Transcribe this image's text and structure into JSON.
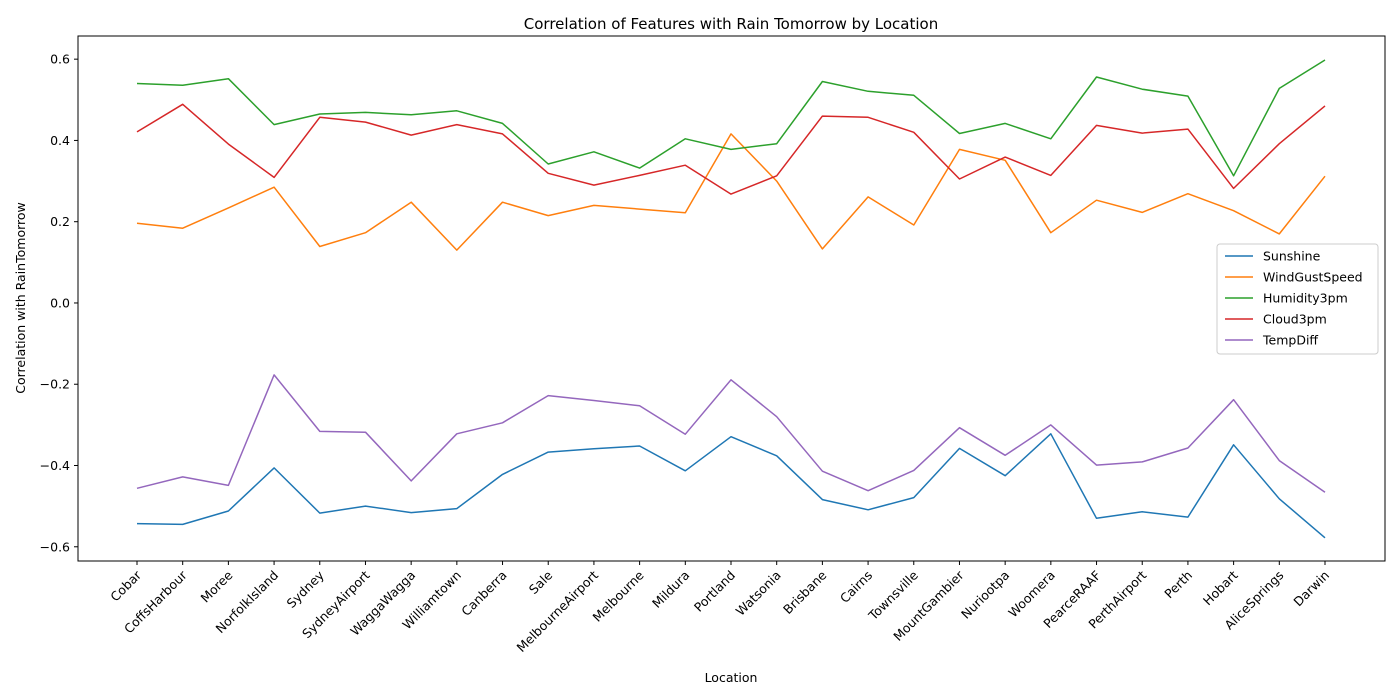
{
  "chart_data": {
    "type": "line",
    "title": "Correlation of Features with Rain Tomorrow by Location",
    "xlabel": "Location",
    "ylabel": "Correlation with RainTomorrow",
    "ylim": [
      -0.635,
      0.657
    ],
    "yticks": [
      -0.6,
      -0.4,
      -0.2,
      0.0,
      0.2,
      0.4,
      0.6
    ],
    "ytick_labels": [
      "−0.6",
      "−0.4",
      "−0.2",
      "0.0",
      "0.2",
      "0.4",
      "0.6"
    ],
    "grid": false,
    "legend_position": "center-right",
    "categories": [
      "Cobar",
      "CoffsHarbour",
      "Moree",
      "NorfolkIsland",
      "Sydney",
      "SydneyAirport",
      "WaggaWagga",
      "Williamtown",
      "Canberra",
      "Sale",
      "MelbourneAirport",
      "Melbourne",
      "Mildura",
      "Portland",
      "Watsonia",
      "Brisbane",
      "Cairns",
      "Townsville",
      "MountGambier",
      "Nuriootpa",
      "Woomera",
      "PearceRAAF",
      "PerthAirport",
      "Perth",
      "Hobart",
      "AliceSprings",
      "Darwin"
    ],
    "series": [
      {
        "name": "Sunshine",
        "color": "#1f77b4",
        "values": [
          -0.543,
          -0.545,
          -0.512,
          -0.406,
          -0.517,
          -0.5,
          -0.516,
          -0.506,
          -0.422,
          -0.367,
          -0.359,
          -0.352,
          -0.413,
          -0.329,
          -0.376,
          -0.484,
          -0.509,
          -0.479,
          -0.358,
          -0.425,
          -0.322,
          -0.53,
          -0.514,
          -0.527,
          -0.349,
          -0.482,
          -0.578
        ]
      },
      {
        "name": "WindGustSpeed",
        "color": "#ff7f0e",
        "values": [
          0.196,
          0.184,
          0.234,
          0.285,
          0.139,
          0.173,
          0.248,
          0.13,
          0.248,
          0.215,
          0.24,
          0.231,
          0.222,
          0.416,
          0.3,
          0.133,
          0.261,
          0.192,
          0.378,
          0.351,
          0.173,
          0.253,
          0.223,
          0.269,
          0.227,
          0.17,
          0.312
        ]
      },
      {
        "name": "Humidity3pm",
        "color": "#2ca02c",
        "values": [
          0.54,
          0.536,
          0.552,
          0.439,
          0.465,
          0.469,
          0.463,
          0.473,
          0.442,
          0.342,
          0.372,
          0.332,
          0.404,
          0.378,
          0.392,
          0.545,
          0.521,
          0.511,
          0.417,
          0.442,
          0.404,
          0.556,
          0.526,
          0.509,
          0.313,
          0.528,
          0.598
        ]
      },
      {
        "name": "Cloud3pm",
        "color": "#d62728",
        "values": [
          0.421,
          0.489,
          0.391,
          0.309,
          0.457,
          0.445,
          0.413,
          0.439,
          0.416,
          0.319,
          0.29,
          0.314,
          0.339,
          0.268,
          0.313,
          0.46,
          0.457,
          0.42,
          0.305,
          0.359,
          0.314,
          0.437,
          0.418,
          0.428,
          0.282,
          0.392,
          0.485
        ]
      },
      {
        "name": "TempDiff",
        "color": "#9467bd",
        "values": [
          -0.456,
          -0.428,
          -0.449,
          -0.177,
          -0.316,
          -0.318,
          -0.438,
          -0.322,
          -0.295,
          -0.228,
          -0.24,
          -0.253,
          -0.323,
          -0.189,
          -0.28,
          -0.414,
          -0.462,
          -0.412,
          -0.307,
          -0.375,
          -0.3,
          -0.399,
          -0.391,
          -0.357,
          -0.238,
          -0.388,
          -0.466
        ]
      }
    ]
  }
}
